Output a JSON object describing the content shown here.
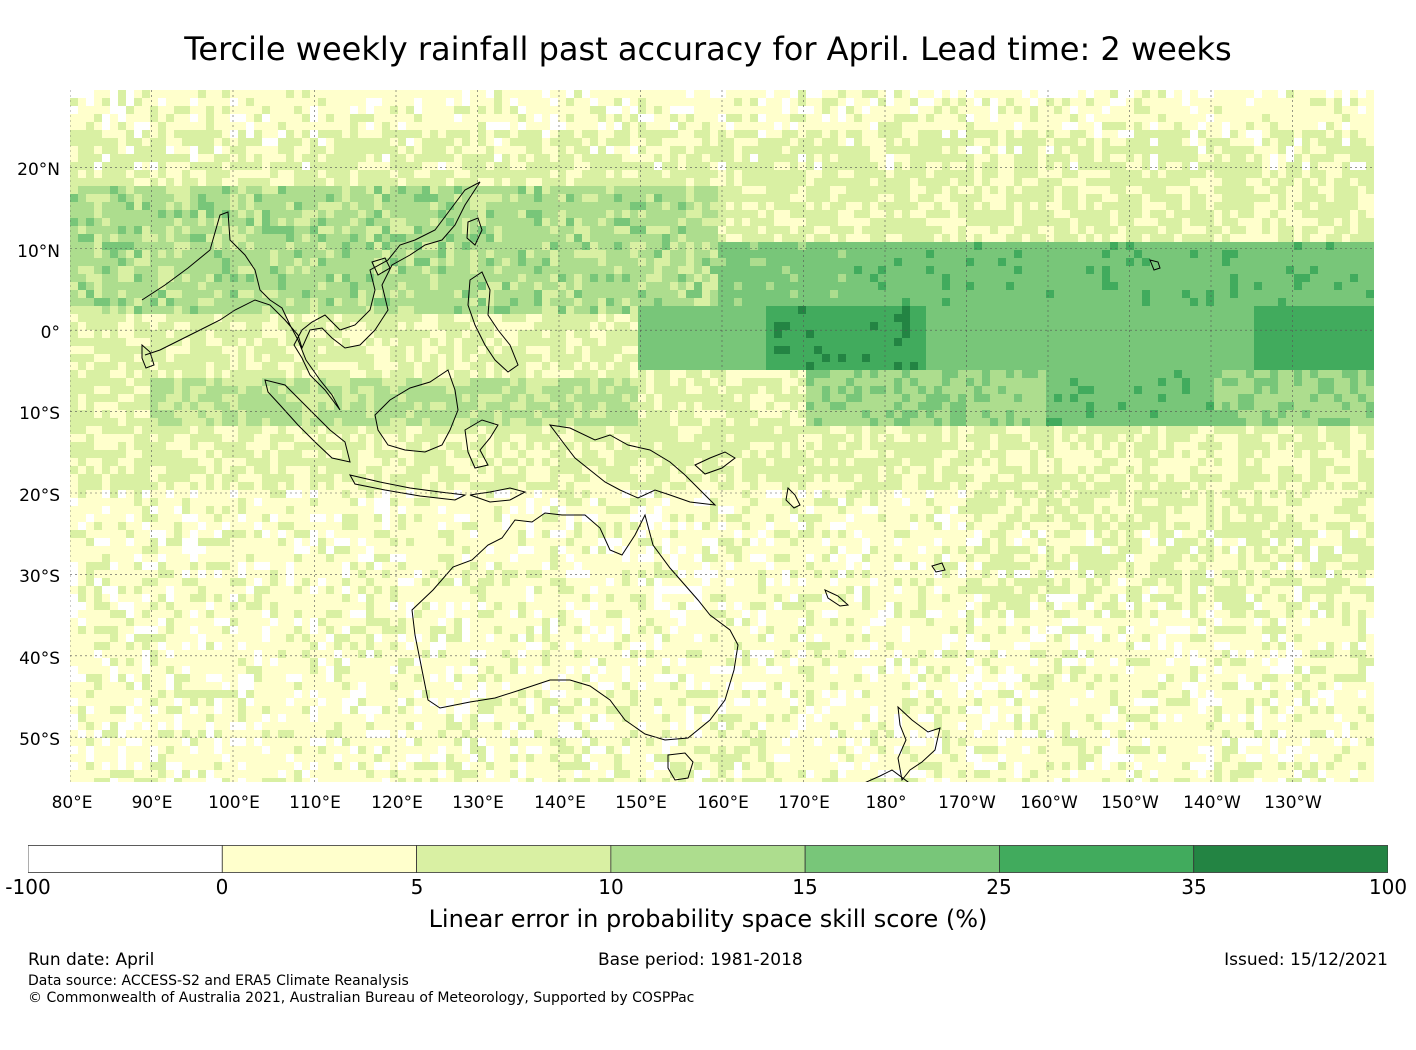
{
  "title": "Tercile weekly rainfall past accuracy for April. Lead time: 2 weeks",
  "map": {
    "lat_labels": [
      "20°N",
      "10°N",
      "0°",
      "10°S",
      "20°S",
      "30°S",
      "40°S",
      "50°S"
    ],
    "lon_labels": [
      "80°E",
      "90°E",
      "100°E",
      "110°E",
      "120°E",
      "130°E",
      "140°E",
      "150°E",
      "160°E",
      "170°E",
      "180°",
      "170°W",
      "160°W",
      "150°W",
      "140°W",
      "130°W"
    ],
    "lat_values": [
      20,
      10,
      0,
      -10,
      -20,
      -30,
      -40,
      -50
    ],
    "lon_values": [
      80,
      90,
      100,
      110,
      120,
      130,
      140,
      150,
      160,
      170,
      180,
      190,
      200,
      210,
      220,
      230
    ],
    "extent": {
      "lon_min": 80,
      "lon_max": 240,
      "lat_min": -55.5,
      "lat_max": 29.5
    },
    "coastline_color": "#000000",
    "grid_color": "#555555"
  },
  "colorbar": {
    "bounds": [
      "-100",
      "0",
      "5",
      "10",
      "15",
      "25",
      "35",
      "100"
    ],
    "colors": [
      "#ffffff",
      "#ffffcc",
      "#d9f0a3",
      "#addd8e",
      "#78c679",
      "#41ab5d",
      "#238443"
    ],
    "label": "Linear error in probability space skill score (%)"
  },
  "footer": {
    "run_date": "Run date: April",
    "base_period": "Base period: 1981-2018",
    "issued": "Issued: 15/12/2021",
    "data_source": "Data source: ACCESS-S2 and ERA5 Climate Reanalysis",
    "copyright": "© Commonwealth of Australia 2021, Australian Bureau of Meteorology, Supported by COSPPac"
  }
}
